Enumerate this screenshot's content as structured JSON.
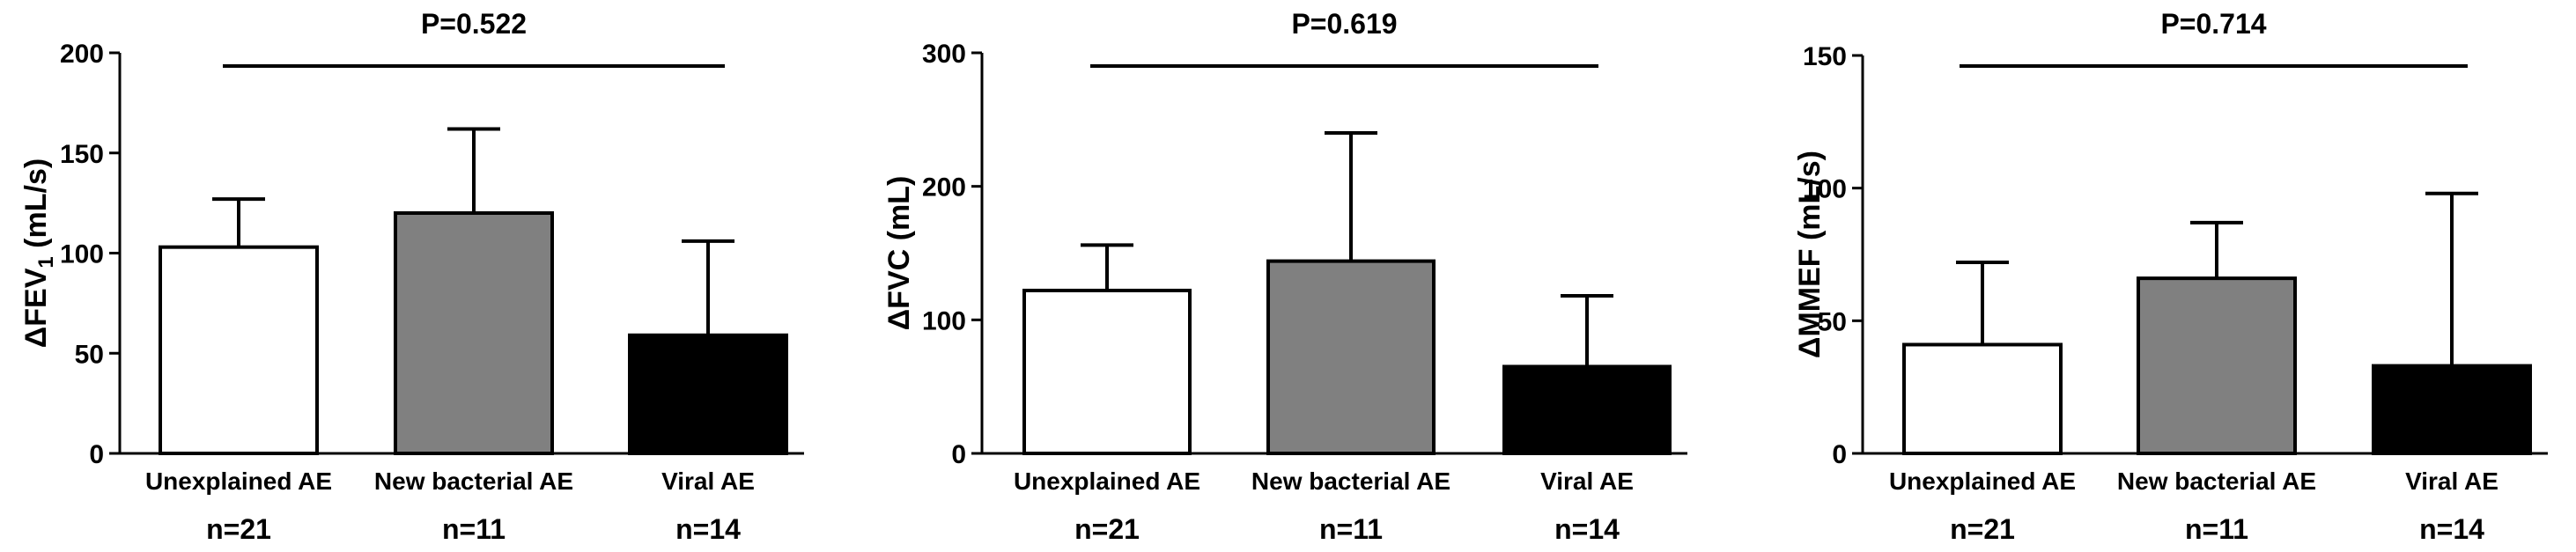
{
  "chart_data": [
    {
      "type": "bar",
      "ylabel": "ΔFEV",
      "ylabel_sub": "1",
      "ylabel_unit": " (mL/s)",
      "ylim": [
        0,
        200
      ],
      "yticks": [
        "0",
        "50",
        "100",
        "150",
        "200"
      ],
      "pvalue": "P=0.522",
      "categories": [
        "Unexplained AE",
        "New bacterial AE",
        "Viral AE"
      ],
      "counts": [
        "n=21",
        "n=11",
        "n=14"
      ],
      "values": [
        103,
        120,
        59
      ],
      "error_upper": [
        127,
        162,
        106
      ],
      "colors": [
        "#ffffff",
        "#808080",
        "#000000"
      ]
    },
    {
      "type": "bar",
      "ylabel": "ΔFVC",
      "ylabel_sub": "",
      "ylabel_unit": " (mL)",
      "ylim": [
        0,
        300
      ],
      "yticks": [
        "0",
        "100",
        "200",
        "300"
      ],
      "pvalue": "P=0.619",
      "categories": [
        "Unexplained AE",
        "New bacterial AE",
        "Viral AE"
      ],
      "counts": [
        "n=21",
        "n=11",
        "n=14"
      ],
      "values": [
        122,
        144,
        65
      ],
      "error_upper": [
        156,
        240,
        118
      ],
      "colors": [
        "#ffffff",
        "#808080",
        "#000000"
      ]
    },
    {
      "type": "bar",
      "ylabel": "ΔMMEF",
      "ylabel_sub": "",
      "ylabel_unit": " (mL/s)",
      "ylim": [
        0,
        150
      ],
      "yticks": [
        "0",
        "50",
        "100",
        "150"
      ],
      "pvalue": "P=0.714",
      "categories": [
        "Unexplained AE",
        "New bacterial AE",
        "Viral AE"
      ],
      "counts": [
        "n=21",
        "n=11",
        "n=14"
      ],
      "values": [
        41,
        66,
        33
      ],
      "error_upper": [
        72,
        87,
        98
      ],
      "colors": [
        "#ffffff",
        "#808080",
        "#000000"
      ]
    }
  ]
}
